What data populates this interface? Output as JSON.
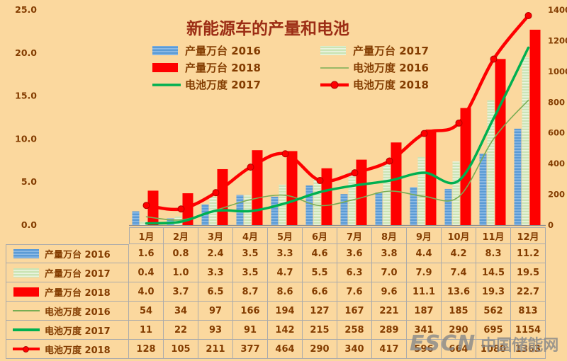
{
  "title": "新能源车的产量和电池",
  "watermark": {
    "brand": "ESCN",
    "name": "中国储能网"
  },
  "colors": {
    "background": "#FBD89E",
    "text": "#833C00",
    "title": "#9C2D15",
    "axis_line": "#8C8C8C",
    "table_border": "#ABABAB",
    "bar_2016": "#5B9BD5",
    "bar_2017": "#CBE4B5",
    "bar_2018": "#FE0000",
    "line_2016": "#79AD53",
    "line_2017": "#00B050",
    "line_2018": "#FE0000"
  },
  "chart_data": {
    "type": "bar+line combo",
    "title": "新能源车的产量和电池",
    "legend_position": "top",
    "gridlines": false,
    "categories": [
      "1月",
      "2月",
      "3月",
      "4月",
      "5月",
      "6月",
      "7月",
      "8月",
      "9月",
      "10月",
      "11月",
      "12月"
    ],
    "left_axis": {
      "min": 0,
      "max": 25,
      "step": 5,
      "labels": [
        "0.0",
        "5.0",
        "10.0",
        "15.0",
        "20.0",
        "25.0"
      ]
    },
    "right_axis": {
      "min": 0,
      "max": 1400,
      "step": 200,
      "labels": [
        "0",
        "200",
        "400",
        "600",
        "800",
        "1000",
        "1200",
        "1400"
      ]
    },
    "series": [
      {
        "name": "产量万台 2016",
        "type": "bar",
        "axis": "left",
        "color": "#5B9BD5",
        "decimals": 1,
        "values": [
          1.6,
          0.8,
          2.4,
          3.5,
          3.3,
          4.6,
          3.6,
          3.8,
          4.4,
          4.2,
          8.3,
          11.2
        ]
      },
      {
        "name": "产量万台 2017",
        "type": "bar",
        "axis": "left",
        "color": "#CBE4B5",
        "decimals": 1,
        "values": [
          0.4,
          1.0,
          3.3,
          3.5,
          4.7,
          5.5,
          6.3,
          7.0,
          7.9,
          7.4,
          14.5,
          19.5
        ]
      },
      {
        "name": "产量万台 2018",
        "type": "bar",
        "axis": "left",
        "color": "#FE0000",
        "decimals": 1,
        "values": [
          4.0,
          3.7,
          6.5,
          8.7,
          8.6,
          6.6,
          7.6,
          9.6,
          11.1,
          13.6,
          19.3,
          22.7
        ]
      },
      {
        "name": "电池万度 2016",
        "type": "line",
        "axis": "right",
        "color": "#79AD53",
        "width": 1.6,
        "marker": false,
        "decimals": 0,
        "values": [
          54,
          34,
          97,
          166,
          194,
          127,
          167,
          221,
          187,
          185,
          562,
          813
        ]
      },
      {
        "name": "电池万度 2017",
        "type": "line",
        "axis": "right",
        "color": "#00B050",
        "width": 3.5,
        "marker": false,
        "decimals": 0,
        "values": [
          11,
          22,
          93,
          91,
          142,
          215,
          258,
          289,
          341,
          290,
          695,
          1154
        ]
      },
      {
        "name": "电池万度 2018",
        "type": "line",
        "axis": "right",
        "color": "#FE0000",
        "width": 4.5,
        "marker": true,
        "decimals": 0,
        "values": [
          128,
          105,
          211,
          377,
          464,
          290,
          340,
          417,
          596,
          664,
          1080,
          1363
        ]
      }
    ]
  }
}
